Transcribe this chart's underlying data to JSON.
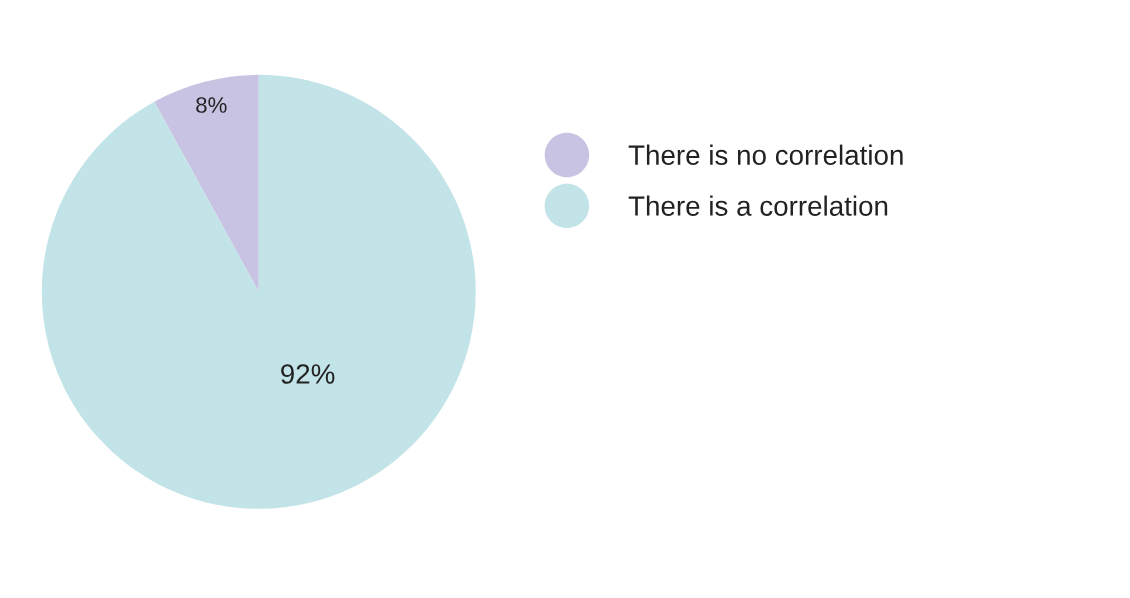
{
  "chart_data": {
    "type": "pie",
    "categories": [
      "There is no correlation",
      "There is a correlation"
    ],
    "values": [
      8,
      92
    ],
    "colors": [
      "#c8c3e2",
      "#c2e3e7"
    ],
    "value_labels": [
      "8%",
      "92%"
    ],
    "legend": "right"
  }
}
